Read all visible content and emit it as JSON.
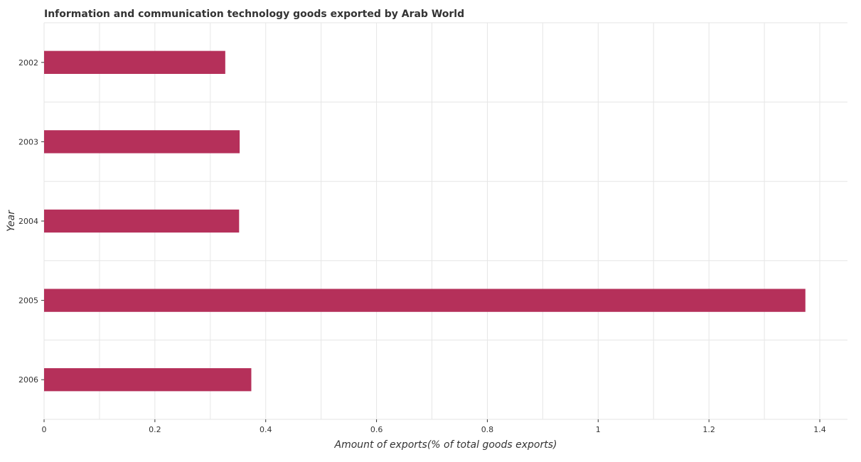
{
  "chart_data": {
    "type": "bar",
    "orientation": "horizontal",
    "title": "Information and communication technology goods exported by Arab World",
    "xlabel": "Amount of exports(% of total goods exports)",
    "ylabel": "Year",
    "categories": [
      "2002",
      "2003",
      "2004",
      "2005",
      "2006"
    ],
    "values": [
      0.327,
      0.353,
      0.352,
      1.374,
      0.374
    ],
    "xlim": [
      0,
      1.45
    ],
    "xticks": [
      0,
      0.2,
      0.4,
      0.6,
      0.8,
      1.0,
      1.2,
      1.4
    ],
    "xtick_labels": [
      "0",
      "0.2",
      "0.4",
      "0.6",
      "0.8",
      "1",
      "1.2",
      "1.4"
    ],
    "grid": true,
    "bar_color": "#b5305a"
  }
}
